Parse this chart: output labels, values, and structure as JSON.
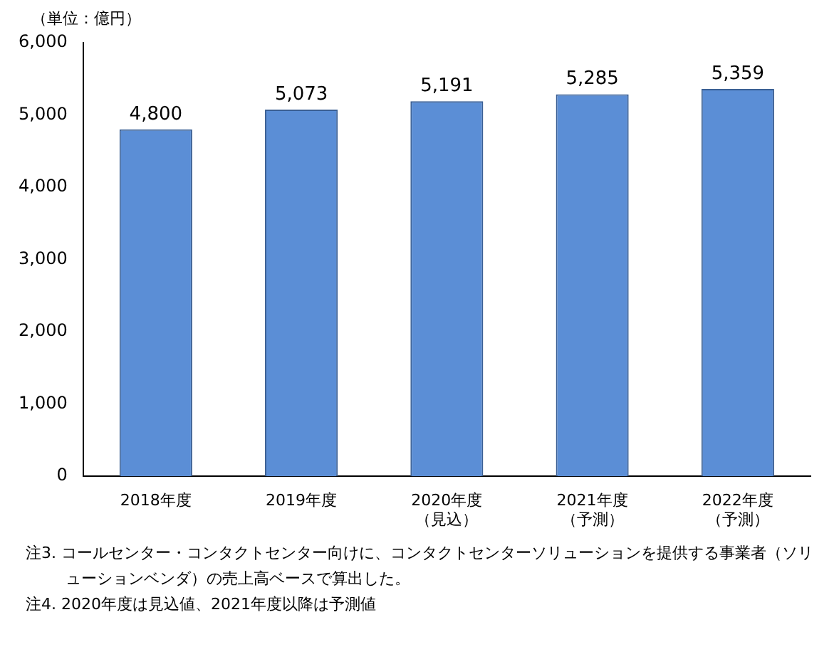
{
  "chart_data": {
    "type": "bar",
    "ylabel": "（単位：億円）",
    "categories": [
      "2018年度",
      "2019年度",
      "2020年度（見込）",
      "2021年度（予測）",
      "2022年度（予測）"
    ],
    "values": [
      4800,
      5073,
      5191,
      5285,
      5359
    ],
    "value_labels": [
      "4,800",
      "5,073",
      "5,191",
      "5,285",
      "5,359"
    ],
    "color": "#5b8ed6",
    "ylim": [
      0,
      6000
    ],
    "yticks": [
      0,
      {
        "value": 1000,
        "label": "1,000"
      },
      {
        "value": 2000,
        "label": "2,000"
      },
      {
        "value": 3000,
        "label": "3,000"
      },
      {
        "value": 4000,
        "label": "4,000"
      },
      {
        "value": 5000,
        "label": "5,000"
      },
      {
        "value": 6000,
        "label": "6,000"
      }
    ],
    "grid": false,
    "legend": false,
    "annotations": [
      "注3. コールセンター・コンタクトセンター向けに、コンタクトセンターソリューションを提供する事業者（ソリューションベンダ）の売上高ベースで算出した。",
      "注4. 2020年度は見込値、2021年度以降は予測値"
    ]
  }
}
